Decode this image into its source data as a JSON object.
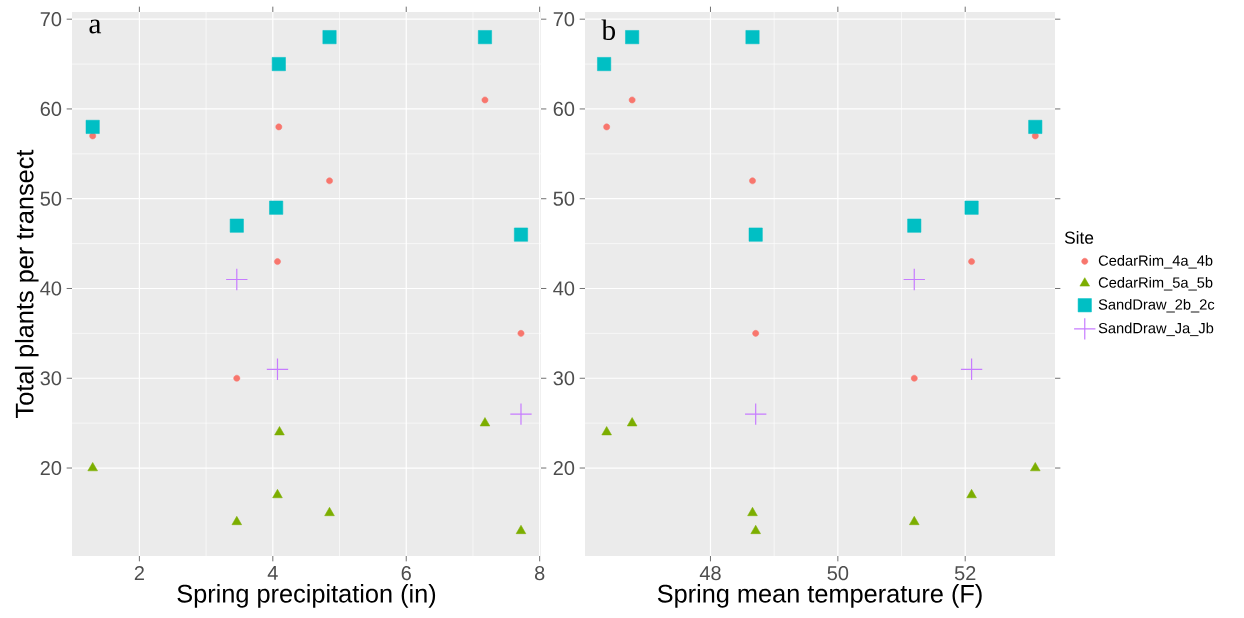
{
  "chart_data": [
    {
      "type": "scatter",
      "xlabel": "Spring precipitation (in)",
      "ylabel": "Total plants per transect",
      "annotations": [
        "a"
      ],
      "xlim": [
        0.99,
        8.02
      ],
      "ylim": [
        10.2,
        70.8
      ],
      "xticks": [
        2,
        4,
        6,
        8
      ],
      "yticks": [
        20,
        30,
        40,
        50,
        60,
        70
      ],
      "grid": true,
      "series": [
        {
          "color": "#F8766D",
          "marker": "circle",
          "x": [
            1.3,
            4.09,
            4.85,
            4.07,
            3.46,
            7.18,
            7.72
          ],
          "values": [
            57,
            58,
            52,
            43,
            30,
            61,
            35
          ]
        },
        {
          "color": "#7CAE00",
          "marker": "triangle",
          "x": [
            1.3,
            3.46,
            4.07,
            4.1,
            4.85,
            7.18,
            7.72
          ],
          "values": [
            20,
            14,
            17,
            24,
            15,
            25,
            13
          ]
        },
        {
          "color": "#00BFC4",
          "marker": "square",
          "x": [
            1.3,
            3.46,
            4.09,
            4.05,
            4.85,
            7.18,
            7.72
          ],
          "values": [
            58,
            47,
            65,
            49,
            68,
            68,
            46
          ]
        },
        {
          "color": "#C77CFF",
          "marker": "cross",
          "x": [
            3.46,
            4.07,
            7.72
          ],
          "values": [
            41,
            31,
            26
          ]
        }
      ]
    },
    {
      "type": "scatter",
      "xlabel": "Spring mean temperature (F)",
      "annotations": [
        "b"
      ],
      "legend": "right",
      "legend_title": "Site",
      "xlim": [
        46.03,
        53.41
      ],
      "ylim": [
        10.2,
        70.8
      ],
      "xticks": [
        48,
        50,
        52
      ],
      "yticks": [
        20,
        30,
        40,
        50,
        60,
        70
      ],
      "grid": true,
      "series": [
        {
          "name": "CedarRim_4a_4b",
          "color": "#F8766D",
          "marker": "circle",
          "x": [
            46.37,
            46.77,
            48.66,
            48.71,
            51.2,
            52.1,
            53.1
          ],
          "values": [
            58,
            61,
            52,
            35,
            30,
            43,
            57
          ]
        },
        {
          "name": "CedarRim_5a_5b",
          "color": "#7CAE00",
          "marker": "triangle",
          "x": [
            46.37,
            46.77,
            48.66,
            48.71,
            51.2,
            52.1,
            53.1
          ],
          "values": [
            24,
            25,
            15,
            13,
            14,
            17,
            20
          ]
        },
        {
          "name": "SandDraw_2b_2c",
          "color": "#00BFC4",
          "marker": "square",
          "x": [
            46.33,
            46.77,
            48.66,
            48.71,
            51.2,
            52.1,
            53.1
          ],
          "values": [
            65,
            68,
            68,
            46,
            47,
            49,
            58
          ]
        },
        {
          "name": "SandDraw_Ja_Jb",
          "color": "#C77CFF",
          "marker": "cross",
          "x": [
            51.2,
            52.1,
            48.71
          ],
          "values": [
            41,
            31,
            26
          ]
        }
      ]
    }
  ]
}
